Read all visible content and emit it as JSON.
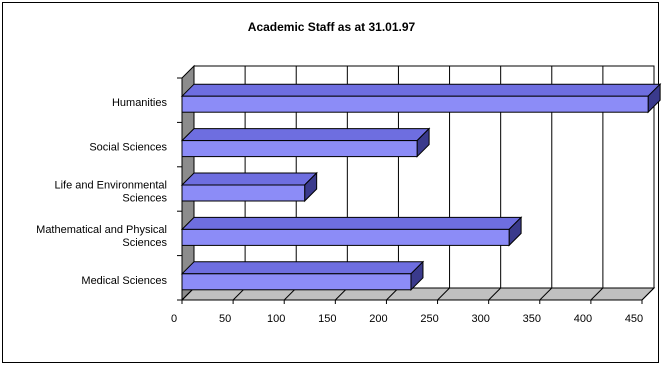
{
  "chart_data": {
    "type": "bar",
    "orientation": "horizontal",
    "style": "3d",
    "title": "Academic Staff as at 31.01.97",
    "categories": [
      "Medical Sciences",
      "Mathematical and Physical Sciences",
      "Life and Environmental Sciences",
      "Social Sciences",
      "Humanities"
    ],
    "category_lines": [
      [
        "Medical Sciences"
      ],
      [
        "Mathematical and Physical",
        "Sciences"
      ],
      [
        "Life and Environmental",
        "Sciences"
      ],
      [
        "Social Sciences"
      ],
      [
        "Humanities"
      ]
    ],
    "values": [
      224,
      320,
      120,
      230,
      456
    ],
    "xlim": [
      0,
      450
    ],
    "xticks": [
      "0",
      "50",
      "100",
      "150",
      "200",
      "250",
      "300",
      "350",
      "400",
      "450"
    ],
    "grid": true,
    "legend": "none",
    "colors": {
      "bar_front": "#8c8cf7",
      "bar_top": "#6e6ee0",
      "bar_side": "#3a3a8c",
      "wall_side": "#8c8c8c",
      "floor": "#c0c0c0"
    }
  }
}
